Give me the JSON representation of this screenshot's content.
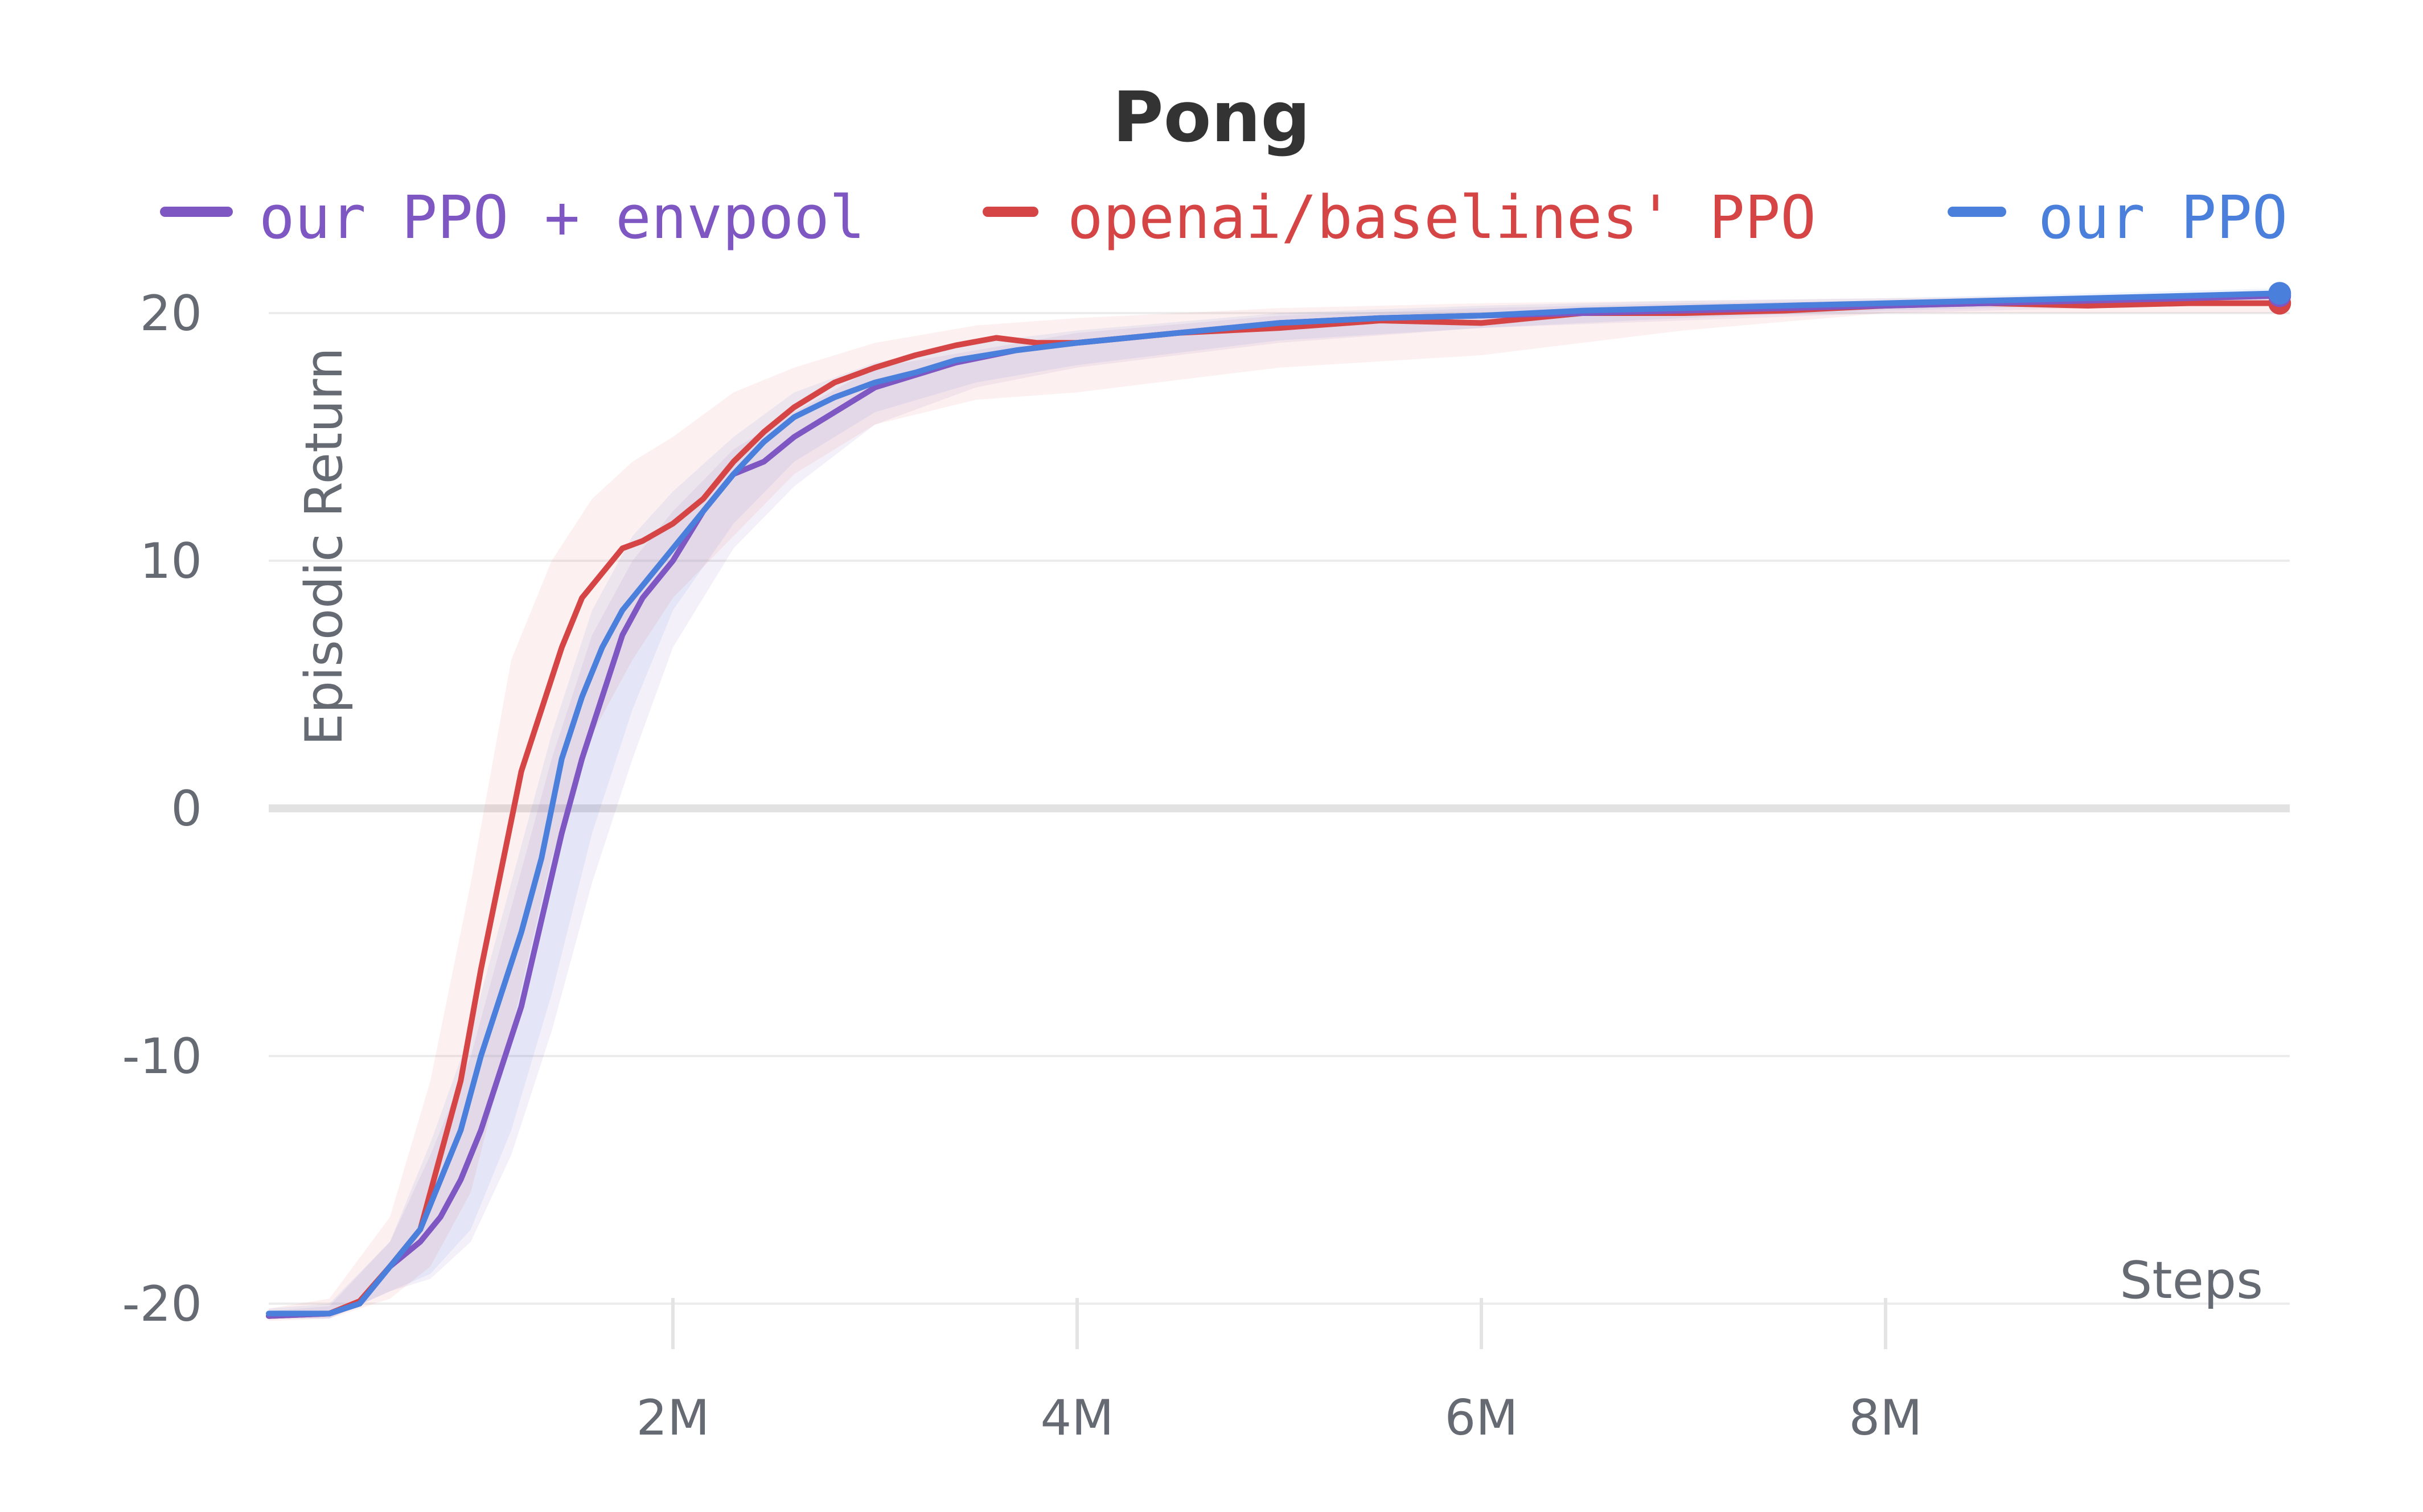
{
  "chart_data": {
    "type": "line",
    "title": "Pong",
    "xlabel": "Steps",
    "ylabel": "Episodic Return",
    "xlim": [
      0,
      10000000
    ],
    "ylim": [
      -20,
      20
    ],
    "x_ticks": [
      2000000,
      4000000,
      6000000,
      8000000
    ],
    "x_tick_labels": [
      "2M",
      "4M",
      "6M",
      "8M"
    ],
    "y_ticks": [
      -20,
      -10,
      0,
      10,
      20
    ],
    "y_tick_labels": [
      "-20",
      "-10",
      "0",
      "10",
      "20"
    ],
    "grid": true,
    "legend_position": "top",
    "series": [
      {
        "name": "our PPO + envpool",
        "color": "#7e57c2",
        "band_color": "#7e57c2",
        "points": [
          [
            0,
            -20.5
          ],
          [
            300000,
            -20.4
          ],
          [
            450000,
            -20.0
          ],
          [
            600000,
            -18.5
          ],
          [
            750000,
            -17.5
          ],
          [
            850000,
            -16.5
          ],
          [
            950000,
            -15.0
          ],
          [
            1050000,
            -13.0
          ],
          [
            1150000,
            -10.5
          ],
          [
            1250000,
            -8.0
          ],
          [
            1350000,
            -4.5
          ],
          [
            1450000,
            -1.0
          ],
          [
            1550000,
            2.0
          ],
          [
            1650000,
            4.5
          ],
          [
            1750000,
            7.0
          ],
          [
            1850000,
            8.5
          ],
          [
            2000000,
            10.0
          ],
          [
            2150000,
            12.0
          ],
          [
            2300000,
            13.5
          ],
          [
            2450000,
            14.0
          ],
          [
            2600000,
            15.0
          ],
          [
            2800000,
            16.0
          ],
          [
            3000000,
            17.0
          ],
          [
            3200000,
            17.5
          ],
          [
            3400000,
            18.0
          ],
          [
            3700000,
            18.5
          ],
          [
            4000000,
            18.8
          ],
          [
            4500000,
            19.2
          ],
          [
            5000000,
            19.6
          ],
          [
            5500000,
            19.8
          ],
          [
            6000000,
            19.9
          ],
          [
            6500000,
            20.0
          ],
          [
            7000000,
            20.1
          ],
          [
            7500000,
            20.2
          ],
          [
            8000000,
            20.3
          ],
          [
            8500000,
            20.4
          ],
          [
            9000000,
            20.5
          ],
          [
            9500000,
            20.6
          ],
          [
            9950000,
            20.7
          ]
        ],
        "band": [
          [
            0,
            -20.6,
            -20.3
          ],
          [
            300000,
            -20.6,
            -20.1
          ],
          [
            600000,
            -19.5,
            -17.5
          ],
          [
            800000,
            -19.0,
            -14.0
          ],
          [
            1000000,
            -17.5,
            -10.0
          ],
          [
            1200000,
            -14.0,
            -4.0
          ],
          [
            1400000,
            -9.0,
            2.0
          ],
          [
            1600000,
            -3.0,
            7.0
          ],
          [
            1800000,
            2.0,
            10.0
          ],
          [
            2000000,
            6.5,
            12.0
          ],
          [
            2300000,
            10.5,
            14.5
          ],
          [
            2600000,
            13.0,
            16.0
          ],
          [
            3000000,
            15.5,
            17.8
          ],
          [
            3500000,
            17.0,
            18.5
          ],
          [
            4000000,
            17.8,
            19.2
          ],
          [
            5000000,
            18.8,
            19.9
          ],
          [
            6000000,
            19.4,
            20.2
          ],
          [
            7000000,
            19.7,
            20.4
          ],
          [
            8000000,
            20.0,
            20.5
          ],
          [
            9000000,
            20.2,
            20.7
          ],
          [
            9950000,
            20.4,
            20.9
          ]
        ]
      },
      {
        "name": "openai/baselines' PPO",
        "color": "#d64545",
        "band_color": "#f08080",
        "points": [
          [
            0,
            -20.5
          ],
          [
            300000,
            -20.4
          ],
          [
            450000,
            -19.9
          ],
          [
            600000,
            -18.5
          ],
          [
            750000,
            -17.0
          ],
          [
            850000,
            -14.0
          ],
          [
            950000,
            -11.0
          ],
          [
            1050000,
            -6.5
          ],
          [
            1150000,
            -2.5
          ],
          [
            1250000,
            1.5
          ],
          [
            1350000,
            4.0
          ],
          [
            1450000,
            6.5
          ],
          [
            1550000,
            8.5
          ],
          [
            1650000,
            9.5
          ],
          [
            1750000,
            10.5
          ],
          [
            1850000,
            10.8
          ],
          [
            2000000,
            11.5
          ],
          [
            2150000,
            12.5
          ],
          [
            2300000,
            14.0
          ],
          [
            2450000,
            15.2
          ],
          [
            2600000,
            16.2
          ],
          [
            2800000,
            17.2
          ],
          [
            3000000,
            17.8
          ],
          [
            3200000,
            18.3
          ],
          [
            3400000,
            18.7
          ],
          [
            3600000,
            19.0
          ],
          [
            3800000,
            18.8
          ],
          [
            4000000,
            18.8
          ],
          [
            4500000,
            19.2
          ],
          [
            5000000,
            19.4
          ],
          [
            5500000,
            19.7
          ],
          [
            6000000,
            19.6
          ],
          [
            6500000,
            20.0
          ],
          [
            7000000,
            20.0
          ],
          [
            7500000,
            20.1
          ],
          [
            8000000,
            20.3
          ],
          [
            8500000,
            20.4
          ],
          [
            9000000,
            20.3
          ],
          [
            9500000,
            20.4
          ],
          [
            9950000,
            20.4
          ]
        ],
        "band": [
          [
            0,
            -20.7,
            -20.2
          ],
          [
            300000,
            -20.6,
            -19.8
          ],
          [
            600000,
            -19.8,
            -16.5
          ],
          [
            800000,
            -18.5,
            -11.0
          ],
          [
            1000000,
            -15.5,
            -3.0
          ],
          [
            1200000,
            -9.0,
            6.0
          ],
          [
            1400000,
            -2.0,
            10.0
          ],
          [
            1600000,
            3.0,
            12.5
          ],
          [
            1800000,
            6.0,
            14.0
          ],
          [
            2000000,
            8.5,
            15.0
          ],
          [
            2300000,
            11.0,
            16.8
          ],
          [
            2600000,
            13.5,
            17.8
          ],
          [
            3000000,
            15.5,
            18.8
          ],
          [
            3500000,
            16.5,
            19.5
          ],
          [
            4000000,
            16.8,
            19.8
          ],
          [
            5000000,
            17.8,
            20.2
          ],
          [
            6000000,
            18.3,
            20.4
          ],
          [
            7000000,
            19.3,
            20.5
          ],
          [
            8000000,
            20.0,
            20.6
          ],
          [
            9000000,
            20.0,
            20.7
          ],
          [
            9950000,
            20.0,
            20.7
          ]
        ]
      },
      {
        "name": "our PPO",
        "color": "#4a7fdb",
        "band_color": "#4a7fdb",
        "points": [
          [
            0,
            -20.4
          ],
          [
            300000,
            -20.4
          ],
          [
            450000,
            -20.0
          ],
          [
            600000,
            -18.5
          ],
          [
            750000,
            -17.0
          ],
          [
            850000,
            -15.0
          ],
          [
            950000,
            -13.0
          ],
          [
            1050000,
            -10.0
          ],
          [
            1150000,
            -7.5
          ],
          [
            1250000,
            -5.0
          ],
          [
            1350000,
            -2.0
          ],
          [
            1450000,
            2.0
          ],
          [
            1550000,
            4.5
          ],
          [
            1650000,
            6.5
          ],
          [
            1750000,
            8.0
          ],
          [
            1850000,
            9.0
          ],
          [
            2000000,
            10.5
          ],
          [
            2150000,
            12.0
          ],
          [
            2300000,
            13.5
          ],
          [
            2450000,
            14.8
          ],
          [
            2600000,
            15.8
          ],
          [
            2800000,
            16.6
          ],
          [
            3000000,
            17.2
          ],
          [
            3200000,
            17.6
          ],
          [
            3400000,
            18.1
          ],
          [
            3700000,
            18.5
          ],
          [
            4000000,
            18.8
          ],
          [
            4500000,
            19.2
          ],
          [
            5000000,
            19.6
          ],
          [
            5500000,
            19.8
          ],
          [
            6000000,
            19.9
          ],
          [
            6500000,
            20.1
          ],
          [
            7000000,
            20.2
          ],
          [
            7500000,
            20.3
          ],
          [
            8000000,
            20.4
          ],
          [
            8500000,
            20.5
          ],
          [
            9000000,
            20.6
          ],
          [
            9500000,
            20.7
          ],
          [
            9950000,
            20.8
          ]
        ],
        "band": [
          [
            0,
            -20.6,
            -20.2
          ],
          [
            300000,
            -20.6,
            -20.0
          ],
          [
            600000,
            -19.5,
            -17.5
          ],
          [
            800000,
            -18.8,
            -13.5
          ],
          [
            1000000,
            -17.0,
            -9.0
          ],
          [
            1200000,
            -13.0,
            -3.0
          ],
          [
            1400000,
            -7.5,
            3.0
          ],
          [
            1600000,
            -1.0,
            8.0
          ],
          [
            1800000,
            4.0,
            11.0
          ],
          [
            2000000,
            8.0,
            12.8
          ],
          [
            2300000,
            11.5,
            15.0
          ],
          [
            2600000,
            14.0,
            16.8
          ],
          [
            3000000,
            16.0,
            18.0
          ],
          [
            3500000,
            17.2,
            18.8
          ],
          [
            4000000,
            17.9,
            19.3
          ],
          [
            5000000,
            18.9,
            20.0
          ],
          [
            6000000,
            19.4,
            20.3
          ],
          [
            7000000,
            19.8,
            20.5
          ],
          [
            8000000,
            20.1,
            20.6
          ],
          [
            9000000,
            20.3,
            20.8
          ],
          [
            9950000,
            20.5,
            21.0
          ]
        ]
      }
    ]
  }
}
